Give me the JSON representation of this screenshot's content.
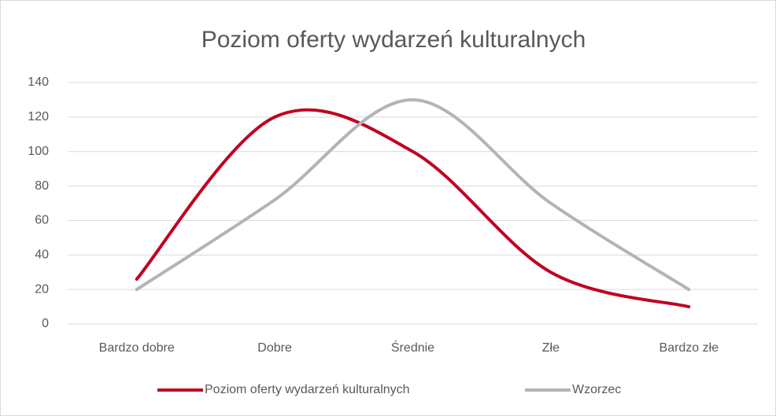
{
  "chart_data": {
    "type": "line",
    "title": "Poziom oferty wydarzeń kulturalnych",
    "categories": [
      "Bardzo dobre",
      "Dobre",
      "Średnie",
      "Złe",
      "Bardzo złe"
    ],
    "series": [
      {
        "name": "Poziom oferty wydarzeń kulturalnych",
        "color": "#c00020",
        "values": [
          26,
          120,
          100,
          30,
          10
        ]
      },
      {
        "name": "Wzorzec",
        "color": "#b4b4b4",
        "values": [
          20,
          72,
          130,
          70,
          20
        ]
      }
    ],
    "ylim": [
      0,
      140
    ],
    "yticks": [
      0,
      20,
      40,
      60,
      80,
      100,
      120,
      140
    ],
    "grid": true,
    "smooth": true,
    "legend": "bottom"
  }
}
